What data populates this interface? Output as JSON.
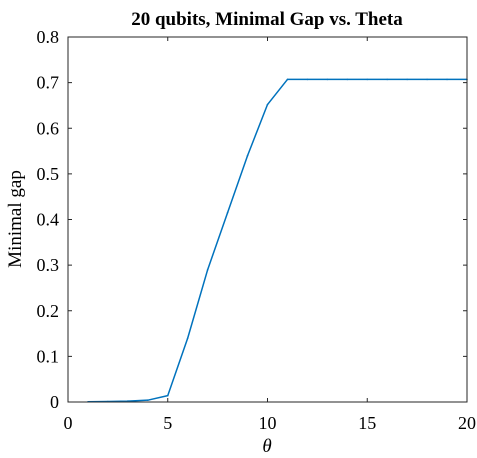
{
  "chart_data": {
    "type": "line",
    "title": "20 qubits, Minimal Gap vs. Theta",
    "xlabel": "θ",
    "ylabel": "Minimal gap",
    "xlim": [
      0,
      20
    ],
    "ylim": [
      0,
      0.8
    ],
    "xticks": [
      0,
      5,
      10,
      15,
      20
    ],
    "xtick_labels": [
      "0",
      "5",
      "10",
      "15",
      "20"
    ],
    "yticks": [
      0,
      0.1,
      0.2,
      0.3,
      0.4,
      0.5,
      0.6,
      0.7,
      0.8
    ],
    "ytick_labels": [
      "0",
      "0.1",
      "0.2",
      "0.3",
      "0.4",
      "0.5",
      "0.6",
      "0.7",
      "0.8"
    ],
    "grid": false,
    "series": [
      {
        "color": "#0072BD",
        "x": [
          1,
          2,
          3,
          4,
          5,
          6,
          7,
          8,
          9,
          10,
          11,
          12,
          13,
          14,
          15,
          16,
          17,
          18,
          19,
          20
        ],
        "y": [
          0.0005,
          0.001,
          0.002,
          0.004,
          0.014,
          0.14,
          0.29,
          0.415,
          0.54,
          0.652,
          0.707,
          0.707,
          0.707,
          0.707,
          0.707,
          0.707,
          0.707,
          0.707,
          0.707,
          0.707
        ]
      }
    ]
  }
}
